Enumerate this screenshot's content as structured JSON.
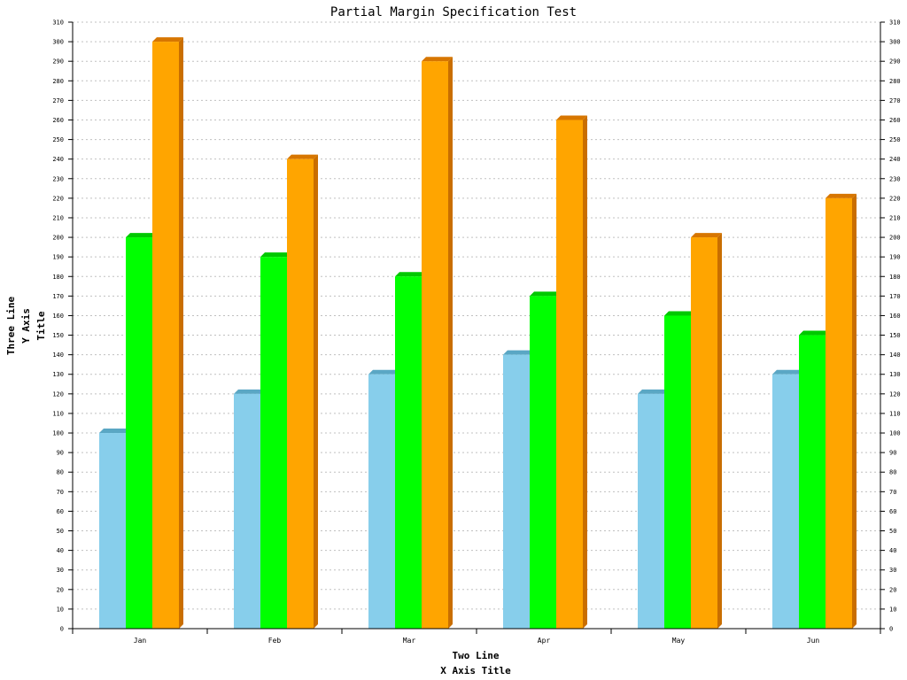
{
  "chart_data": {
    "type": "bar",
    "style": "3d",
    "title": "Partial Margin Specification Test",
    "xlabel": [
      "Two Line",
      "X Axis Title"
    ],
    "ylabel": [
      "Three Line",
      "Y Axis",
      "Title"
    ],
    "categories": [
      "Jan",
      "Feb",
      "Mar",
      "Apr",
      "May",
      "Jun"
    ],
    "series": [
      {
        "values": [
          100,
          120,
          130,
          140,
          120,
          130
        ]
      },
      {
        "values": [
          200,
          190,
          180,
          170,
          160,
          150
        ]
      },
      {
        "values": [
          300,
          240,
          290,
          260,
          200,
          220
        ]
      }
    ],
    "ylim": [
      0,
      310
    ],
    "ytick_step": 10,
    "grid": true,
    "secondary_y_axis": true,
    "colors": {
      "series": [
        "#87ceeb",
        "#00ff00",
        "#ffa500"
      ],
      "series_top": [
        "#5aa7c4",
        "#00c800",
        "#d77600"
      ],
      "series_side": [
        "#4f97b3",
        "#00b400",
        "#c96e00"
      ],
      "grid": "#c0c0c0",
      "axis": "#000000"
    }
  }
}
